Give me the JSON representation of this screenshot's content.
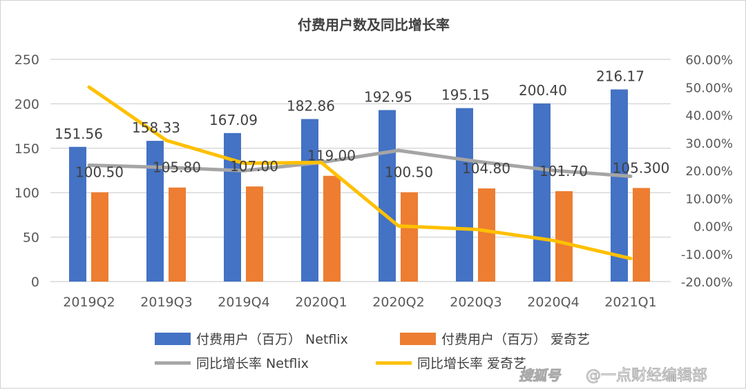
{
  "chart_data": {
    "type": "bar+line",
    "title": "付费用户数及同比增长率",
    "categories": [
      "2019Q2",
      "2019Q3",
      "2019Q4",
      "2020Q1",
      "2020Q2",
      "2020Q3",
      "2020Q4",
      "2021Q1"
    ],
    "y_left": {
      "range": [
        0,
        250
      ],
      "ticks": [
        "0",
        "50",
        "100",
        "150",
        "200",
        "250"
      ]
    },
    "y_right": {
      "range": [
        -20,
        60
      ],
      "ticks": [
        "-20.00%",
        "-10.00%",
        "0.00%",
        "10.00%",
        "20.00%",
        "30.00%",
        "40.00%",
        "50.00%",
        "60.00%"
      ]
    },
    "grid": true,
    "legend_position": "bottom",
    "series": [
      {
        "name": "付费用户（百万） Netflix",
        "type": "bar",
        "axis": "left",
        "color": "#4472c4",
        "values": [
          151.56,
          158.33,
          167.09,
          182.86,
          192.95,
          195.15,
          200.4,
          216.17
        ],
        "labels": [
          "151.56",
          "158.33",
          "167.09",
          "182.86",
          "192.95",
          "195.15",
          "200.40",
          "216.17"
        ]
      },
      {
        "name": "付费用户（百万） 爱奇艺",
        "type": "bar",
        "axis": "left",
        "color": "#ed7d31",
        "values": [
          100.5,
          105.8,
          107.0,
          119.0,
          100.5,
          104.8,
          101.7,
          105.3
        ],
        "labels": [
          "100.50",
          "105.80",
          "107.00",
          "119.00",
          "100.50",
          "104.80",
          "101.70",
          "105.300"
        ]
      },
      {
        "name": "同比增长率 Netflix",
        "type": "line",
        "axis": "right",
        "color": "#a5a5a5",
        "values": [
          21.9,
          21.1,
          19.9,
          22.9,
          27.2,
          23.3,
          20.0,
          17.9
        ]
      },
      {
        "name": "同比增长率 爱奇艺",
        "type": "line",
        "axis": "right",
        "color": "#ffc000",
        "values": [
          50.0,
          30.8,
          22.6,
          22.9,
          0.0,
          -1.2,
          -5.2,
          -11.7
        ]
      }
    ]
  },
  "watermark": "@一点财经编辑部",
  "watermark_logo": "搜狐号"
}
